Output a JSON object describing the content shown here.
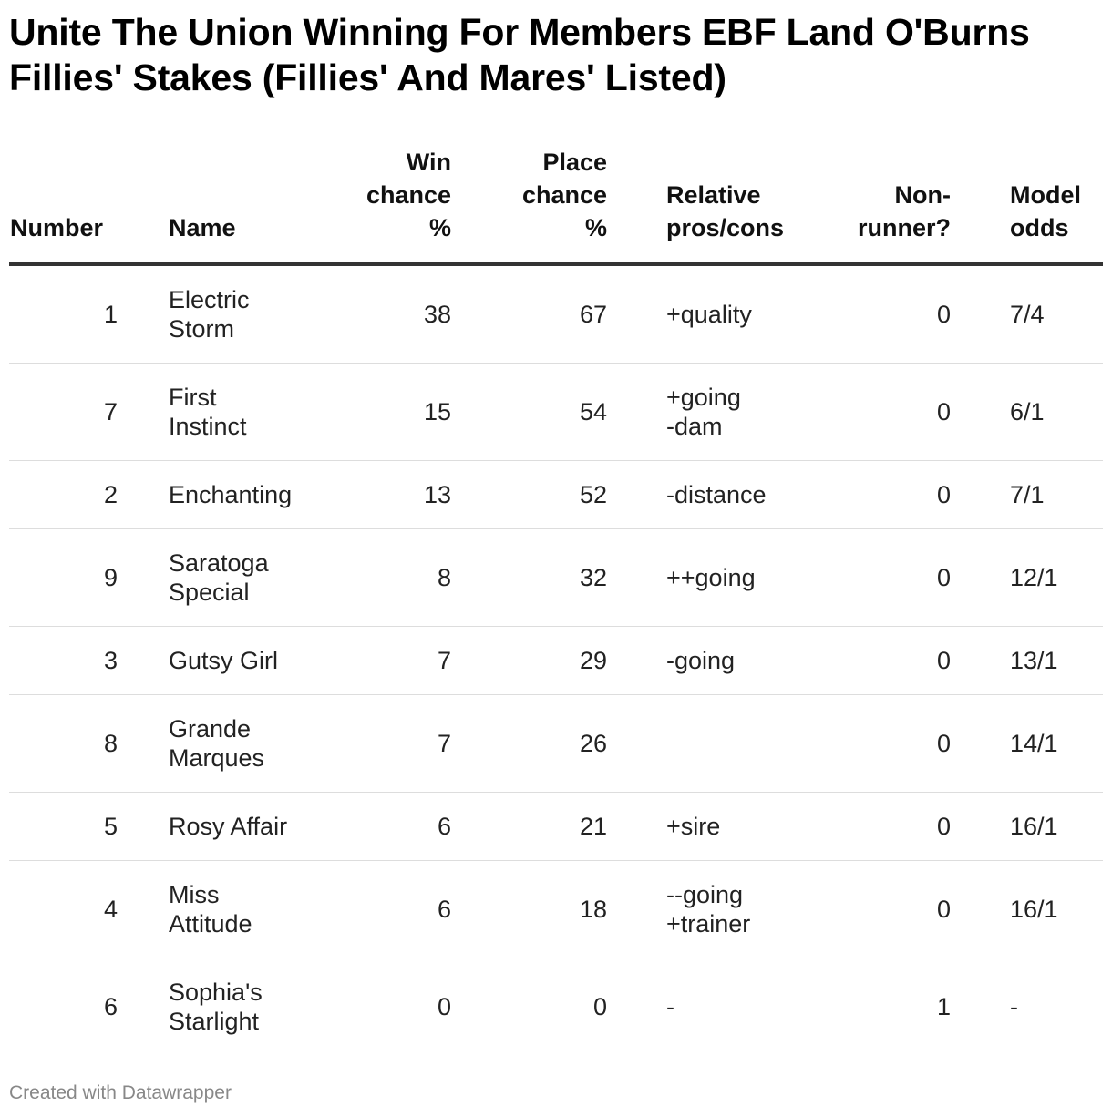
{
  "title": "Unite The Union Winning For Members EBF Land O'Burns Fillies' Stakes (Fillies' And Mares' Listed)",
  "footer": "Created with Datawrapper",
  "chart_data": {
    "type": "table",
    "title": "Unite The Union Winning For Members EBF Land O'Burns Fillies' Stakes (Fillies' And Mares' Listed)",
    "columns": [
      "Number",
      "Name",
      "Win chance %",
      "Place chance %",
      "Relative pros/cons",
      "Non-runner?",
      "Model odds"
    ],
    "column_lines": [
      [
        "Number"
      ],
      [
        "Name"
      ],
      [
        "Win",
        "chance",
        "%"
      ],
      [
        "Place",
        "chance",
        "%"
      ],
      [
        "Relative",
        "pros/cons"
      ],
      [
        "Non-",
        "runner?"
      ],
      [
        "Model",
        "odds"
      ]
    ],
    "rows": [
      {
        "number": "1",
        "name": [
          "Electric",
          "Storm"
        ],
        "win": "38",
        "place": "67",
        "pros": [
          "+quality"
        ],
        "nonrunner": "0",
        "odds": "7/4"
      },
      {
        "number": "7",
        "name": [
          "First",
          "Instinct"
        ],
        "win": "15",
        "place": "54",
        "pros": [
          "+going",
          "-dam"
        ],
        "nonrunner": "0",
        "odds": "6/1"
      },
      {
        "number": "2",
        "name": [
          "Enchanting"
        ],
        "win": "13",
        "place": "52",
        "pros": [
          "-distance"
        ],
        "nonrunner": "0",
        "odds": "7/1"
      },
      {
        "number": "9",
        "name": [
          "Saratoga",
          "Special"
        ],
        "win": "8",
        "place": "32",
        "pros": [
          "++going"
        ],
        "nonrunner": "0",
        "odds": "12/1"
      },
      {
        "number": "3",
        "name": [
          "Gutsy Girl"
        ],
        "win": "7",
        "place": "29",
        "pros": [
          "-going"
        ],
        "nonrunner": "0",
        "odds": "13/1"
      },
      {
        "number": "8",
        "name": [
          "Grande",
          "Marques"
        ],
        "win": "7",
        "place": "26",
        "pros": [],
        "nonrunner": "0",
        "odds": "14/1"
      },
      {
        "number": "5",
        "name": [
          "Rosy Affair"
        ],
        "win": "6",
        "place": "21",
        "pros": [
          "+sire"
        ],
        "nonrunner": "0",
        "odds": "16/1"
      },
      {
        "number": "4",
        "name": [
          "Miss",
          "Attitude"
        ],
        "win": "6",
        "place": "18",
        "pros": [
          "--going",
          "+trainer"
        ],
        "nonrunner": "0",
        "odds": "16/1"
      },
      {
        "number": "6",
        "name": [
          "Sophia's",
          "Starlight"
        ],
        "win": "0",
        "place": "0",
        "pros": [
          "-"
        ],
        "nonrunner": "1",
        "odds": "-"
      }
    ]
  }
}
